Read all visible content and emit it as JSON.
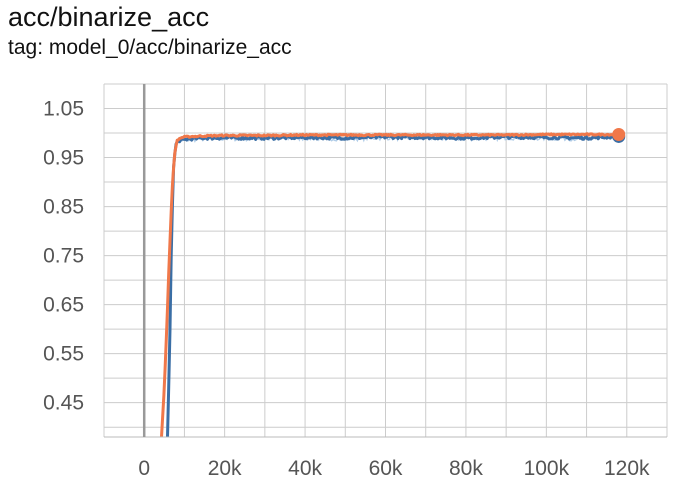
{
  "card": {
    "title": "acc/binarize_acc",
    "tag": "tag: model_0/acc/binarize_acc"
  },
  "chart_data": {
    "type": "line",
    "title": "acc/binarize_acc",
    "subtitle": "tag: model_0/acc/binarize_acc",
    "xlabel": "",
    "ylabel": "",
    "xlim": [
      -10000,
      130000
    ],
    "ylim": [
      0.38,
      1.1
    ],
    "x_ticks": [
      0,
      20000,
      40000,
      60000,
      80000,
      100000,
      120000
    ],
    "x_tick_labels": [
      "0",
      "20k",
      "40k",
      "60k",
      "80k",
      "100k",
      "120k"
    ],
    "y_ticks": [
      0.45,
      0.55,
      0.65,
      0.75,
      0.85,
      0.95,
      1.05
    ],
    "y_tick_labels": [
      "0.45",
      "0.55",
      "0.65",
      "0.75",
      "0.85",
      "0.95",
      "1.05"
    ],
    "grid": true,
    "legend": "none",
    "colors": {
      "blue": "#3a6ea5",
      "blue_raw": "#a9c8e6",
      "orange": "#f0784a",
      "orange_raw": "#f8c9b2",
      "zero_line": "#999999",
      "grid": "#cccccc"
    },
    "series": [
      {
        "color": "#3a6ea5",
        "x": [
          5800,
          6300,
          6800,
          7300,
          7800,
          8500,
          9500,
          11000,
          15000,
          20000,
          30000,
          40000,
          50000,
          60000,
          70000,
          80000,
          90000,
          100000,
          110000,
          118000
        ],
        "y": [
          0.38,
          0.55,
          0.8,
          0.93,
          0.975,
          0.985,
          0.985,
          0.988,
          0.99,
          0.99,
          0.99,
          0.991,
          0.99,
          0.992,
          0.991,
          0.99,
          0.992,
          0.991,
          0.99,
          0.993
        ],
        "end_marker": true
      },
      {
        "color": "#f0784a",
        "x": [
          4300,
          5000,
          5700,
          6300,
          6900,
          7500,
          8200,
          9000,
          10000,
          12000,
          15000,
          20000,
          30000,
          40000,
          50000,
          60000,
          70000,
          80000,
          90000,
          100000,
          110000,
          118000
        ],
        "y": [
          0.38,
          0.48,
          0.62,
          0.76,
          0.88,
          0.955,
          0.985,
          0.99,
          0.992,
          0.993,
          0.994,
          0.995,
          0.995,
          0.996,
          0.996,
          0.996,
          0.996,
          0.996,
          0.996,
          0.997,
          0.997,
          0.997
        ],
        "end_marker": true
      }
    ]
  }
}
